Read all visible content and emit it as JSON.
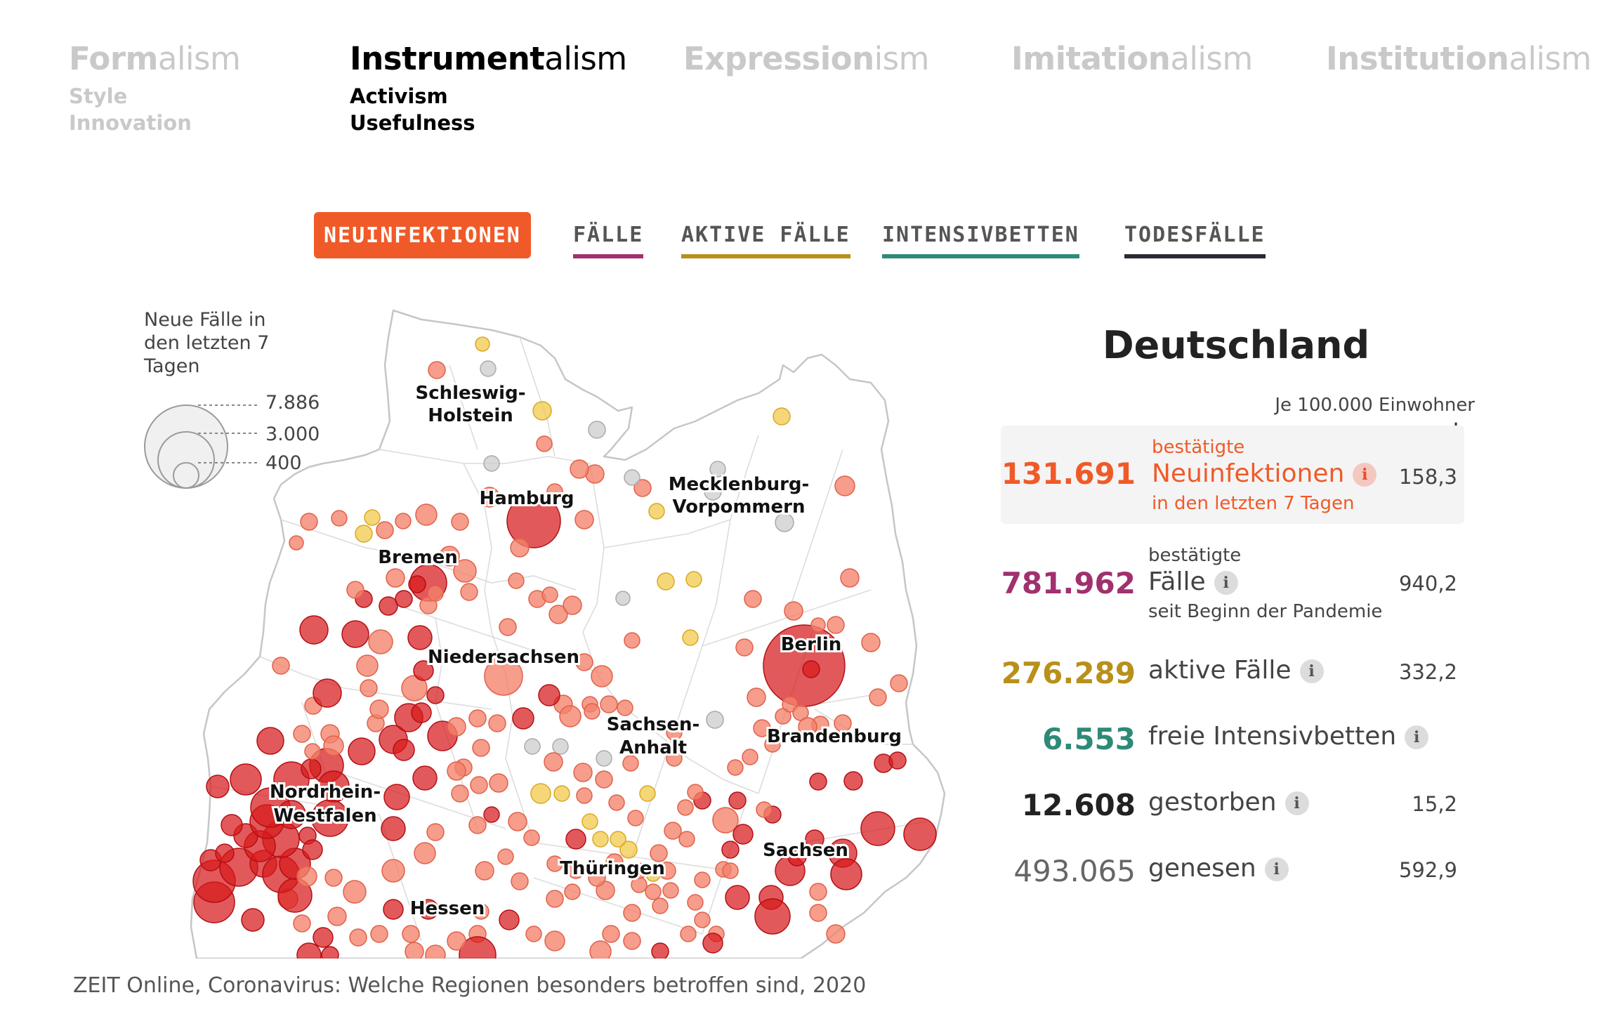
{
  "isms": [
    {
      "bold": "Form",
      "rest": "alism",
      "sub": [
        "Style",
        "Innovation"
      ]
    },
    {
      "bold": "Instrument",
      "rest": "alism",
      "sub": [
        "Activism",
        "Usefulness"
      ]
    },
    {
      "bold": "Expression",
      "rest": "ism",
      "sub": []
    },
    {
      "bold": "Imitation",
      "rest": "alism",
      "sub": []
    },
    {
      "bold": "Institution",
      "rest": "alism",
      "sub": []
    }
  ],
  "active_ism": "Instrumentalism",
  "tabs": [
    {
      "label": "NEUINFEKTIONEN",
      "active": true,
      "color": "#f05a28"
    },
    {
      "label": "FÄLLE",
      "active": false,
      "color": "#a0306e"
    },
    {
      "label": "AKTIVE FÄLLE",
      "active": false,
      "color": "#b8901a"
    },
    {
      "label": "INTENSIVBETTEN",
      "active": false,
      "color": "#2e8a78"
    },
    {
      "label": "TODESFÄLLE",
      "active": false,
      "color": "#2a2a35"
    }
  ],
  "legend": {
    "title": [
      "Neue Fälle in",
      "den letzten 7",
      "Tagen"
    ],
    "values": [
      "7.886",
      "3.000",
      "400"
    ]
  },
  "map_labels": {
    "sh1": "Schleswig-",
    "sh2": "Holstein",
    "mv1": "Mecklenburg-",
    "mv2": "Vorpommern",
    "hamburg": "Hamburg",
    "bremen": "Bremen",
    "berlin": "Berlin",
    "nds": "Niedersachsen",
    "st1": "Sachsen-",
    "st2": "Anhalt",
    "bb": "Brandenburg",
    "nrw1": "Nordrhein-",
    "nrw2": "Westfalen",
    "sn": "Sachsen",
    "th": "Thüringen",
    "he": "Hessen"
  },
  "map_colors": {
    "high": "#d7191c",
    "mid": "#f4826a",
    "low": "#f2c94c",
    "none": "#cccccc"
  },
  "panel": {
    "title": "Deutschland",
    "per_capita_label": "Je 100.000 Einwohner",
    "arrow": "↓",
    "rows": [
      {
        "number": "131.691",
        "pre": "bestätigte",
        "label": "Neuinfektionen",
        "post": "in den letzten 7 Tagen",
        "per_capita": "158,3",
        "color": "#f05a28"
      },
      {
        "number": "781.962",
        "pre": "bestätigte",
        "label": "Fälle",
        "post": "seit Beginn der Pandemie",
        "per_capita": "940,2",
        "color": "#a0306e"
      },
      {
        "number": "276.289",
        "label": "aktive Fälle",
        "per_capita": "332,2",
        "color": "#b8901a"
      },
      {
        "number": "6.553",
        "label": "freie Intensivbetten",
        "per_capita": "",
        "color": "#2e8a78"
      },
      {
        "number": "12.608",
        "label": "gestorben",
        "per_capita": "15,2",
        "color": "#222222"
      },
      {
        "number": "493.065",
        "label": "genesen",
        "per_capita": "592,9",
        "color": "#666666"
      }
    ],
    "info_glyph": "i"
  },
  "caption": "ZEIT Online, Coronavirus: Welche Regionen besonders betroffen sind, 2020"
}
